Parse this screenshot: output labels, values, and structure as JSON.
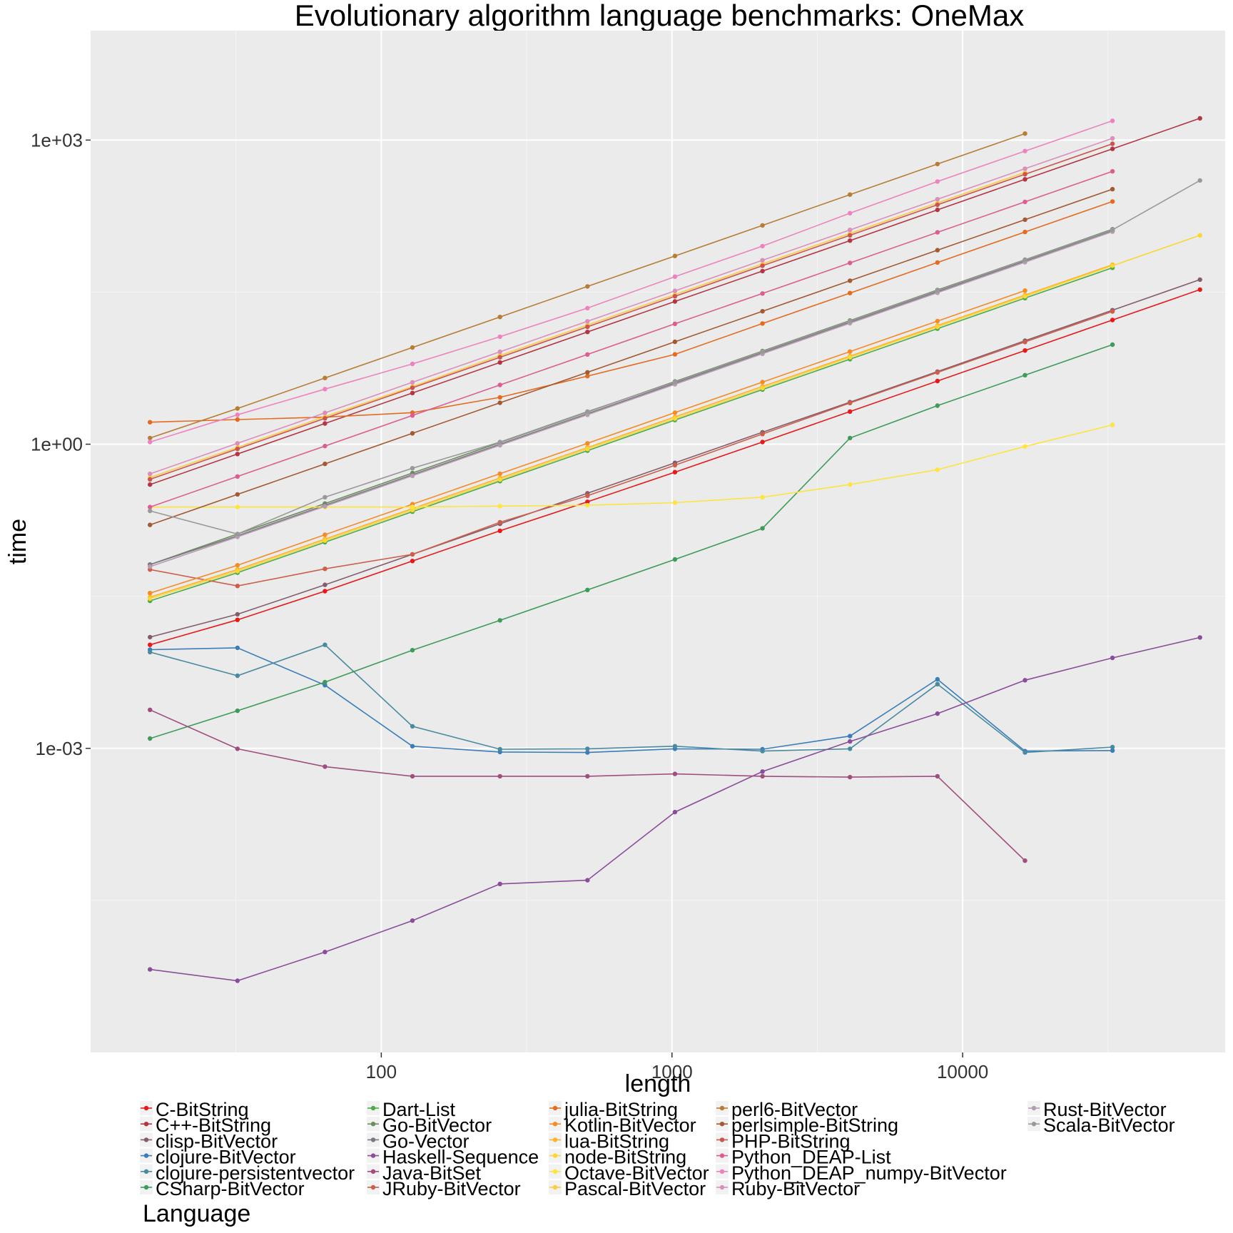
{
  "chart_data": {
    "type": "line",
    "title": "Evolutionary algorithm language benchmarks: OneMax",
    "xlabel": "length",
    "ylabel": "time",
    "x_scale": "log",
    "y_scale": "log",
    "xlim": [
      10,
      80000
    ],
    "ylim": [
      1e-06,
      12000
    ],
    "x_ticks": [
      100,
      1000,
      10000
    ],
    "x_tick_labels": [
      "100",
      "1000",
      "10000"
    ],
    "y_ticks": [
      0.001,
      1,
      1000
    ],
    "y_tick_labels": [
      "1e-03",
      "1e+00",
      "1e+03"
    ],
    "grid": true,
    "legend_title": "Language",
    "legend_position": "bottom",
    "x": [
      16,
      32,
      64,
      128,
      256,
      512,
      1024,
      2048,
      4096,
      8192,
      16384,
      32768,
      65536
    ],
    "series": [
      {
        "name": "C-BitString",
        "color": "#E41A1C",
        "values": [
          0.0105,
          0.0185,
          0.0355,
          0.0705,
          0.14,
          0.27,
          0.53,
          1.05,
          2.1,
          4.2,
          8.4,
          16.8,
          33.5
        ]
      },
      {
        "name": "C++-BitString",
        "color": "#B13744",
        "values": [
          0.4,
          0.8,
          1.6,
          3.2,
          6.4,
          12.8,
          25.6,
          51,
          102,
          205,
          410,
          820,
          1640
        ]
      },
      {
        "name": "clisp-BitVector",
        "color": "#845D6C",
        "values": [
          0.0125,
          0.021,
          0.041,
          0.082,
          0.164,
          0.328,
          0.656,
          1.312,
          2.6,
          5.2,
          10.5,
          21,
          42
        ]
      },
      {
        "name": "clojure-BitVector",
        "color": "#3B7DB8",
        "values": [
          0.0094,
          0.0098,
          0.0042,
          0.00105,
          0.00092,
          0.00091,
          0.00099,
          0.00098,
          0.00132,
          0.0048,
          0.00094,
          0.00095,
          null
        ]
      },
      {
        "name": "clojure-persistentvector",
        "color": "#4A8A9E",
        "values": [
          0.0089,
          0.0052,
          0.0105,
          0.00165,
          0.00098,
          0.00099,
          0.00105,
          0.00094,
          0.00099,
          0.0043,
          0.00091,
          0.00103,
          null
        ]
      },
      {
        "name": "CSharp-BitVector",
        "color": "#3F9A5B",
        "values": [
          0.00125,
          0.00235,
          0.0045,
          0.0093,
          0.0183,
          0.0365,
          0.073,
          0.148,
          1.15,
          2.4,
          4.8,
          9.6,
          null
        ]
      },
      {
        "name": "Dart-List",
        "color": "#4CAA4B",
        "values": [
          0.0285,
          0.054,
          0.108,
          0.216,
          0.432,
          0.864,
          1.73,
          3.46,
          6.9,
          13.8,
          27.6,
          55,
          null
        ]
      },
      {
        "name": "Go-BitVector",
        "color": "#6A8F5C",
        "values": [
          0.065,
          0.13,
          0.26,
          0.52,
          1.04,
          2.08,
          4.16,
          8.3,
          16.6,
          33.2,
          66,
          132,
          null
        ]
      },
      {
        "name": "Go-Vector",
        "color": "#7E7683",
        "values": [
          0.065,
          0.125,
          0.25,
          0.5,
          1.0,
          2.0,
          4.0,
          8.0,
          16.0,
          32.0,
          64.0,
          128,
          null
        ]
      },
      {
        "name": "Haskell-Sequence",
        "color": "#8A4E99",
        "values": [
          6.6e-06,
          5.1e-06,
          9.8e-06,
          2e-05,
          4.6e-05,
          5e-05,
          0.000235,
          0.00059,
          0.00117,
          0.0022,
          0.0047,
          0.0078,
          0.0124
        ]
      },
      {
        "name": "Java-BitSet",
        "color": "#9F4E7E",
        "values": [
          0.0024,
          0.00099,
          0.00066,
          0.00053,
          0.00053,
          0.00053,
          0.00056,
          0.00053,
          0.00052,
          0.00053,
          7.8e-05,
          null,
          null
        ]
      },
      {
        "name": "JRuby-BitVector",
        "color": "#CE5E4C",
        "values": [
          0.058,
          0.04,
          0.059,
          0.082,
          0.17,
          0.31,
          0.62,
          1.26,
          2.55,
          5.1,
          10.2,
          20.4,
          null
        ]
      },
      {
        "name": "julia-BitString",
        "color": "#E36B22",
        "values": [
          1.65,
          1.75,
          1.85,
          2.05,
          2.9,
          4.7,
          7.7,
          15.5,
          31,
          62,
          124,
          248,
          null
        ]
      },
      {
        "name": "Kotlin-BitVector",
        "color": "#F18B2B",
        "values": [
          0.034,
          0.064,
          0.128,
          0.256,
          0.512,
          1.02,
          2.05,
          4.1,
          8.2,
          16.4,
          32.8,
          null,
          null
        ]
      },
      {
        "name": "lua-BitString",
        "color": "#FDB32A",
        "values": [
          0.031,
          0.058,
          0.116,
          0.232,
          0.464,
          0.928,
          1.86,
          3.72,
          7.4,
          14.8,
          29.6,
          59,
          null
        ]
      },
      {
        "name": "node-BitString",
        "color": "#F9D736",
        "values": [
          0.03,
          0.056,
          0.112,
          0.224,
          0.448,
          0.896,
          1.79,
          3.58,
          7.2,
          14.4,
          28.8,
          57.6,
          115
        ]
      },
      {
        "name": "Octave-BitVector",
        "color": "#FDE443",
        "values": [
          0.24,
          0.24,
          0.24,
          0.24,
          0.245,
          0.25,
          0.265,
          0.3,
          0.4,
          0.56,
          0.95,
          1.55,
          null
        ]
      },
      {
        "name": "Pascal-BitVector",
        "color": "#FBCB46",
        "values": [
          0.47,
          0.93,
          1.87,
          3.7,
          7.5,
          15,
          30,
          60,
          120,
          240,
          480,
          null,
          null
        ]
      },
      {
        "name": "perl6-BitVector",
        "color": "#B77D35",
        "values": [
          1.15,
          2.25,
          4.5,
          9.0,
          18,
          36,
          72,
          144,
          290,
          580,
          1160,
          null,
          null
        ]
      },
      {
        "name": "perlsimple-BitString",
        "color": "#A15A34",
        "values": [
          0.16,
          0.32,
          0.64,
          1.28,
          2.56,
          5.12,
          10.24,
          20.5,
          41,
          82,
          164,
          328,
          null
        ]
      },
      {
        "name": "PHP-BitString",
        "color": "#C9564E",
        "values": [
          0.45,
          0.9,
          1.8,
          3.6,
          7.2,
          14.4,
          28.8,
          57.6,
          115,
          230,
          460,
          920,
          null
        ]
      },
      {
        "name": "Python_DEAP-List",
        "color": "#DB5E90",
        "values": [
          0.24,
          0.48,
          0.96,
          1.92,
          3.84,
          7.68,
          15.4,
          30.7,
          61.4,
          123,
          246,
          492,
          null
        ]
      },
      {
        "name": "Python_DEAP_numpy-BitVector",
        "color": "#ED83BE",
        "values": [
          1.05,
          1.95,
          3.5,
          6.2,
          11.5,
          22,
          45,
          90,
          190,
          390,
          780,
          1550,
          null
        ]
      },
      {
        "name": "Ruby-BitVector",
        "color": "#D98FBA",
        "values": [
          0.51,
          1.02,
          2.04,
          4.08,
          8.16,
          16.3,
          32.6,
          65.3,
          130,
          261,
          522,
          1040,
          null
        ]
      },
      {
        "name": "Rust-BitVector",
        "color": "#B49DB0",
        "values": [
          0.062,
          0.122,
          0.244,
          0.488,
          0.976,
          1.95,
          3.9,
          7.8,
          15.6,
          31.2,
          62.4,
          125,
          null
        ]
      },
      {
        "name": "Scala-BitVector",
        "color": "#999999",
        "values": [
          0.22,
          0.13,
          0.3,
          0.58,
          1.05,
          2.1,
          4.1,
          8.2,
          16.4,
          32.8,
          65.6,
          130,
          400
        ]
      }
    ]
  }
}
